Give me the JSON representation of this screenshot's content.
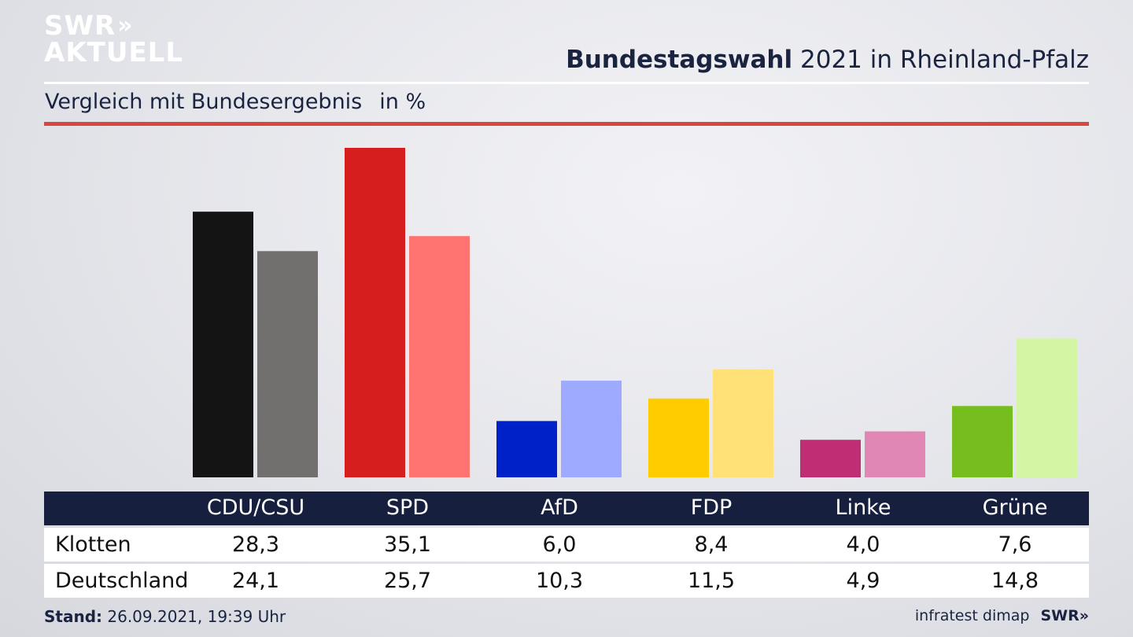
{
  "brand": {
    "line1": "SWR",
    "line2": "AKTUELL",
    "chevrons": "»",
    "footer_logo": "SWR",
    "footer_chevrons": "»"
  },
  "header": {
    "title_bold": "Bundestagswahl",
    "title_rest": "2021 in Rheinland-Pfalz",
    "subtitle": "Vergleich mit Bundesergebnis",
    "unit": "in %"
  },
  "footer": {
    "stand_label": "Stand:",
    "stand_value": "26.09.2021, 19:39 Uhr",
    "source": "infratest dimap"
  },
  "chart_data": {
    "type": "bar",
    "categories": [
      "CDU/CSU",
      "SPD",
      "AfD",
      "FDP",
      "Linke",
      "Grüne"
    ],
    "series": [
      {
        "name": "Klotten",
        "values": [
          28.3,
          35.1,
          6.0,
          8.4,
          4.0,
          7.6
        ],
        "labels": [
          "28,3",
          "35,1",
          "6,0",
          "8,4",
          "4,0",
          "7,6"
        ],
        "colors": [
          "#141414",
          "#d61e1e",
          "#0020c8",
          "#ffcc00",
          "#bf2d74",
          "#76bd1e"
        ]
      },
      {
        "name": "Deutschland",
        "values": [
          24.1,
          25.7,
          10.3,
          11.5,
          4.9,
          14.8
        ],
        "labels": [
          "24,1",
          "25,7",
          "10,3",
          "11,5",
          "4,9",
          "14,8"
        ],
        "colors": [
          "#72706e",
          "#ff7370",
          "#9eaaff",
          "#ffe177",
          "#e087b5",
          "#d4f5a4"
        ]
      }
    ],
    "ylim": [
      0,
      35.1
    ],
    "grid": false,
    "legend": "table below chart"
  }
}
